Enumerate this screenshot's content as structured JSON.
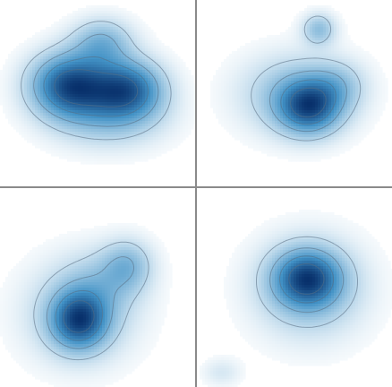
{
  "chart_data": [
    {
      "type": "heatmap",
      "kind": "kernel-density",
      "colormap": [
        "#ffffff",
        "#08306b"
      ],
      "contour_levels": [
        0.2,
        0.4,
        0.6,
        0.8
      ],
      "blobs": [
        {
          "x": 0.35,
          "y": 0.45,
          "sx": 0.14,
          "sy": 0.12,
          "w": 1.0
        },
        {
          "x": 0.65,
          "y": 0.47,
          "sx": 0.13,
          "sy": 0.11,
          "w": 0.85
        },
        {
          "x": 0.52,
          "y": 0.22,
          "sx": 0.11,
          "sy": 0.09,
          "w": 0.45
        },
        {
          "x": 0.55,
          "y": 0.62,
          "sx": 0.2,
          "sy": 0.12,
          "w": 0.35
        }
      ]
    },
    {
      "type": "heatmap",
      "kind": "kernel-density",
      "colormap": [
        "#ffffff",
        "#08306b"
      ],
      "contour_levels": [
        0.2,
        0.4,
        0.6,
        0.8
      ],
      "blobs": [
        {
          "x": 0.57,
          "y": 0.57,
          "sx": 0.11,
          "sy": 0.1,
          "w": 1.0
        },
        {
          "x": 0.5,
          "y": 0.5,
          "sx": 0.2,
          "sy": 0.15,
          "w": 0.5
        },
        {
          "x": 0.62,
          "y": 0.15,
          "sx": 0.06,
          "sy": 0.06,
          "w": 0.5
        },
        {
          "x": 0.72,
          "y": 0.45,
          "sx": 0.1,
          "sy": 0.09,
          "w": 0.3
        }
      ]
    },
    {
      "type": "heatmap",
      "kind": "kernel-density",
      "colormap": [
        "#ffffff",
        "#08306b"
      ],
      "contour_levels": [
        0.2,
        0.4,
        0.6,
        0.8
      ],
      "blobs": [
        {
          "x": 0.4,
          "y": 0.66,
          "sx": 0.1,
          "sy": 0.1,
          "w": 1.0
        },
        {
          "x": 0.4,
          "y": 0.62,
          "sx": 0.2,
          "sy": 0.18,
          "w": 0.4
        },
        {
          "x": 0.65,
          "y": 0.38,
          "sx": 0.09,
          "sy": 0.09,
          "w": 0.45
        },
        {
          "x": 0.52,
          "y": 0.47,
          "sx": 0.14,
          "sy": 0.12,
          "w": 0.25
        }
      ]
    },
    {
      "type": "heatmap",
      "kind": "kernel-density",
      "colormap": [
        "#ffffff",
        "#08306b"
      ],
      "contour_levels": [
        0.2,
        0.4,
        0.6,
        0.8
      ],
      "blobs": [
        {
          "x": 0.56,
          "y": 0.45,
          "sx": 0.12,
          "sy": 0.1,
          "w": 1.0
        },
        {
          "x": 0.57,
          "y": 0.5,
          "sx": 0.2,
          "sy": 0.18,
          "w": 0.45
        },
        {
          "x": 0.12,
          "y": 0.92,
          "sx": 0.07,
          "sy": 0.05,
          "w": 0.18
        }
      ]
    }
  ]
}
